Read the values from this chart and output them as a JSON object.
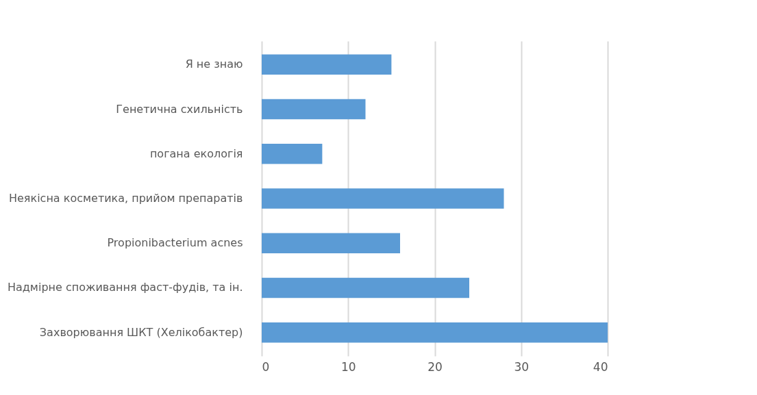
{
  "chart_data": {
    "type": "bar",
    "orientation": "horizontal",
    "categories": [
      "Я не знаю",
      "Генетична схильність",
      "погана екологія",
      "Неякісна косметика, прийом препаратів",
      "Propionibacterium acnes",
      "Надмірне споживання фаст-фудів, та ін.",
      "Захворювання ШКТ (Хелікобактер)"
    ],
    "values": [
      15,
      12,
      7,
      28,
      16,
      24,
      40
    ],
    "color": "#5b9bd5",
    "xlim": [
      0,
      40
    ],
    "xticks": [
      0,
      10,
      20,
      30,
      40
    ],
    "grid": "x"
  }
}
